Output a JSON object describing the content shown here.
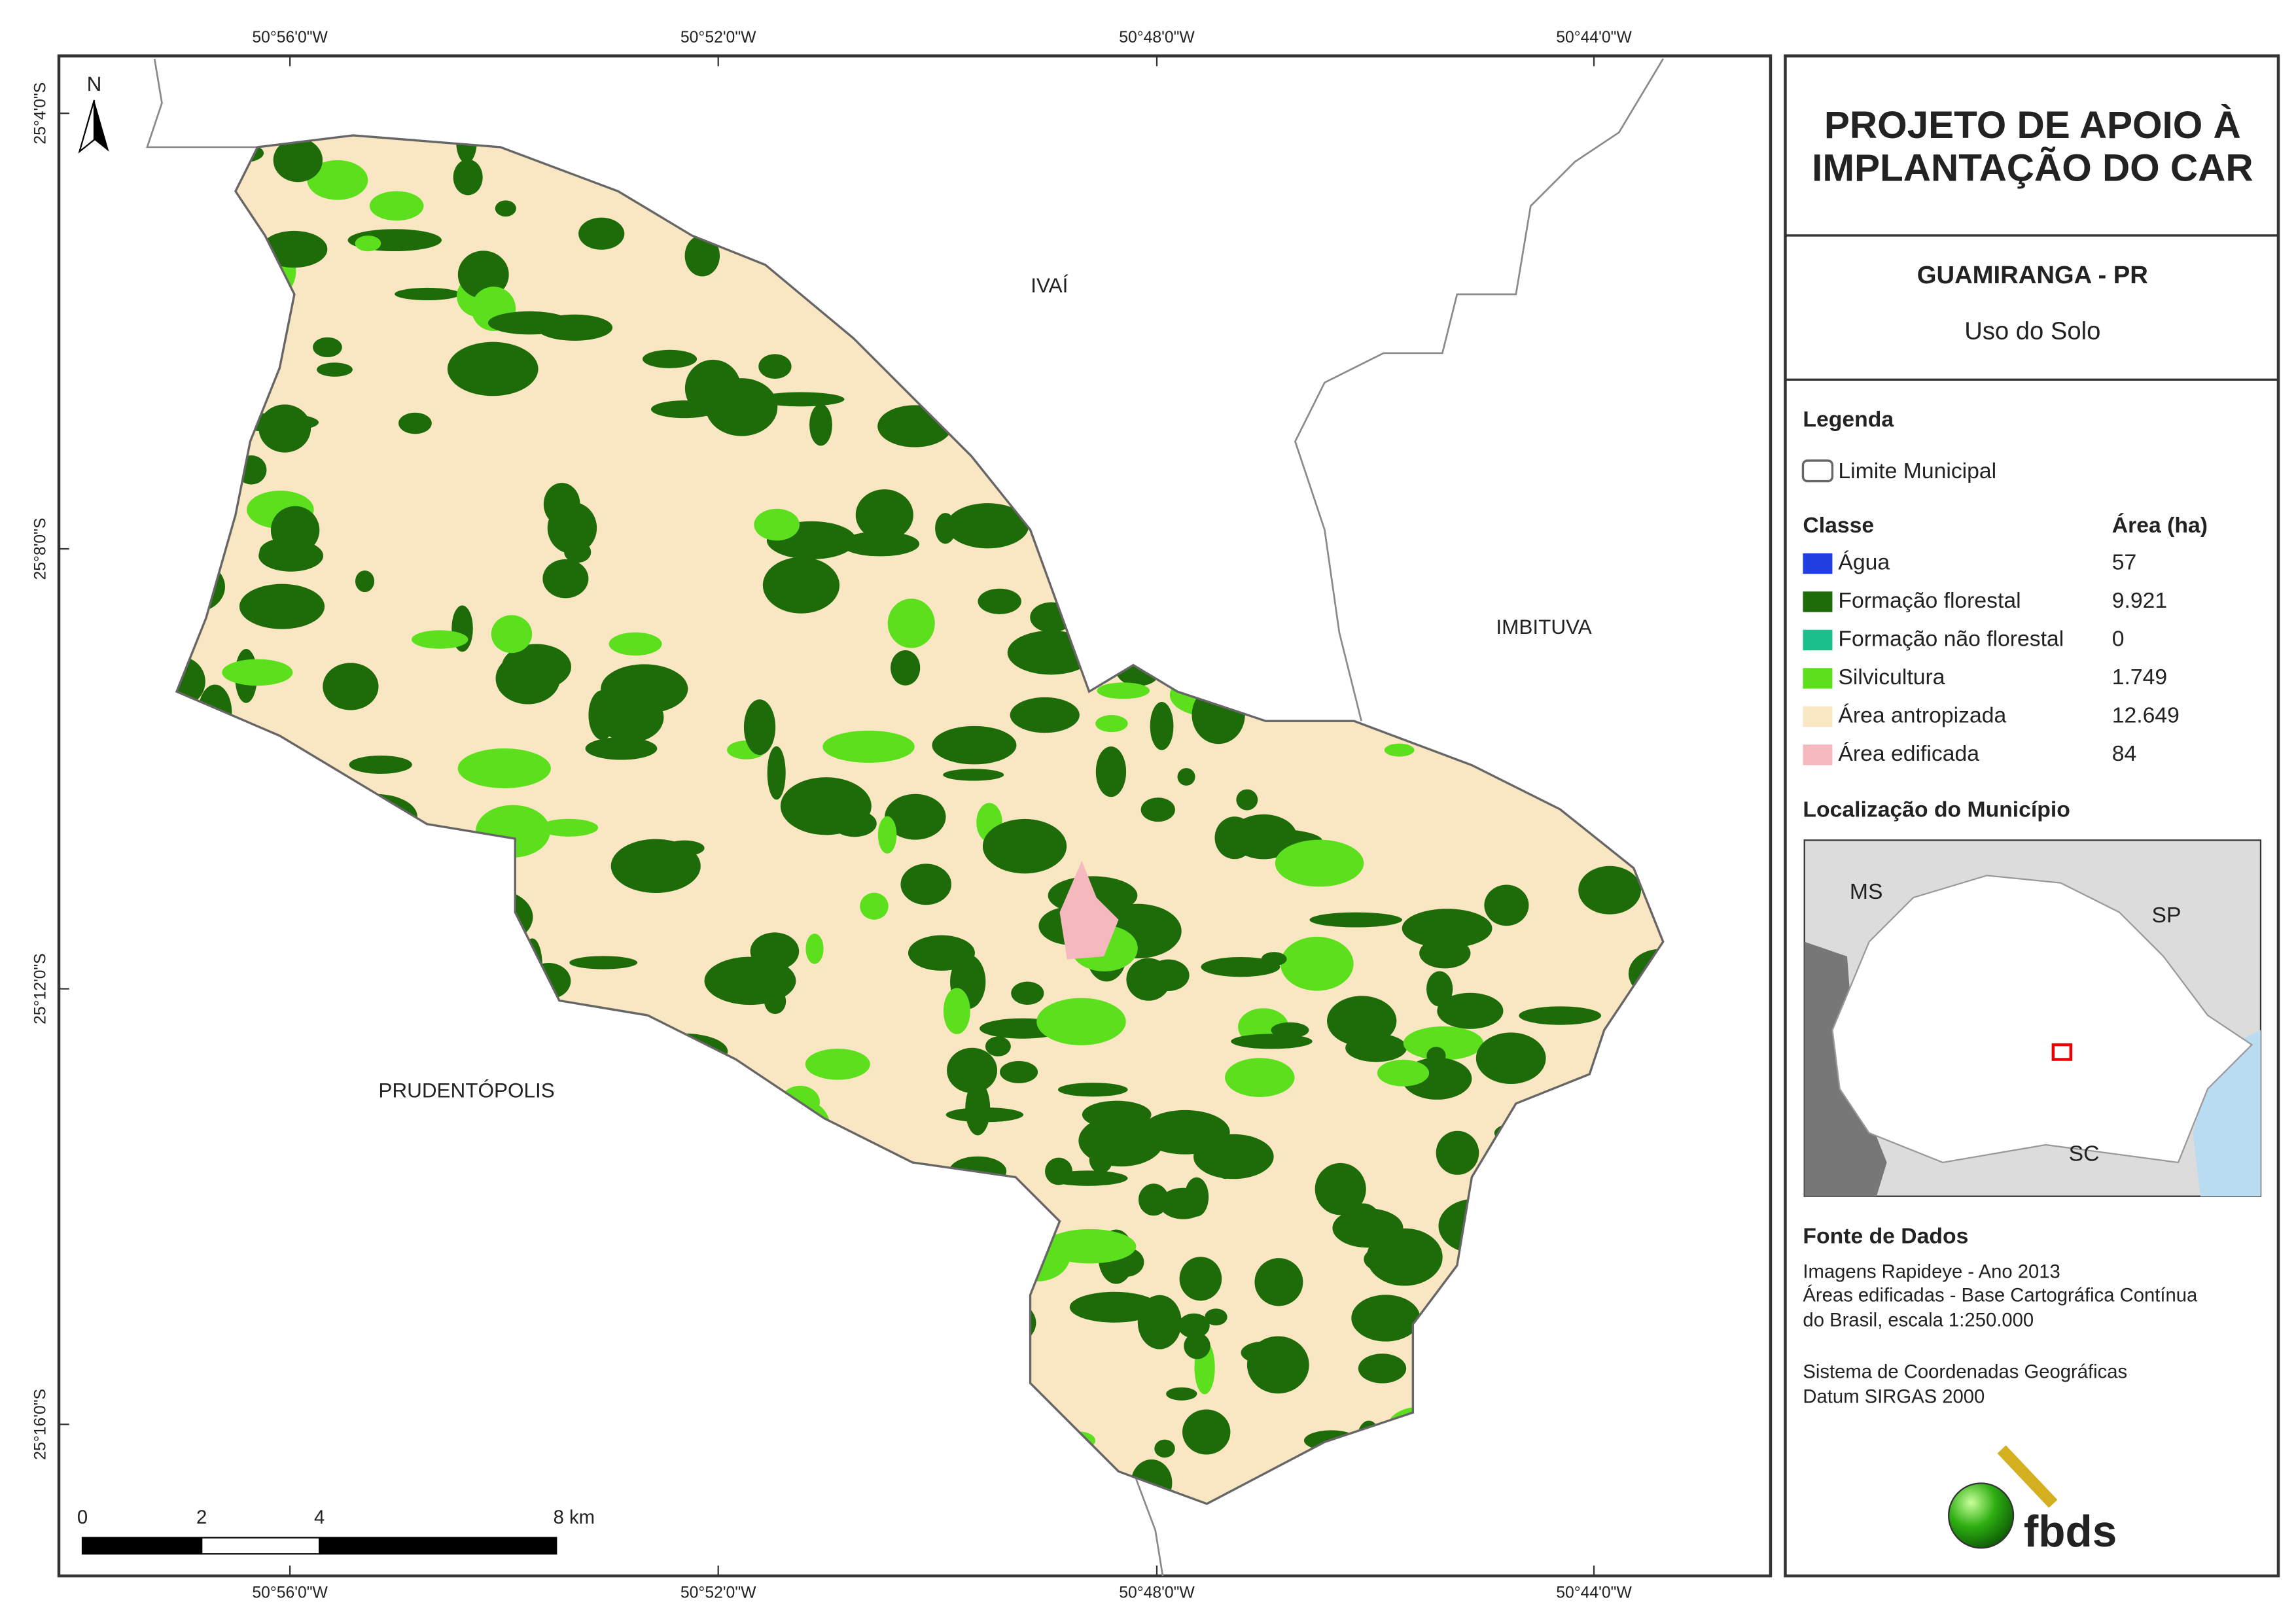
{
  "map": {
    "coordinates": {
      "top": [
        "50°56'0\"W",
        "50°52'0\"W",
        "50°48'0\"W",
        "50°44'0\"W"
      ],
      "bottom": [
        "50°56'0\"W",
        "50°52'0\"W",
        "50°48'0\"W",
        "50°44'0\"W"
      ],
      "left": [
        "25°4'0\"S",
        "25°8'0\"S",
        "25°12'0\"S",
        "25°16'0\"S"
      ]
    },
    "north": "N",
    "places": [
      "IVAÍ",
      "IMBITUVA",
      "PRUDENTÓPOLIS"
    ],
    "scale": [
      "0",
      "2",
      "4",
      "8 km"
    ]
  },
  "panel": {
    "title": [
      "PROJETO DE APOIO À",
      "IMPLANTAÇÃO DO CAR"
    ],
    "municipality": "GUAMIRANGA - PR",
    "subtitle": "Uso do Solo",
    "legend": {
      "heading": "Legenda",
      "boundary": "Limite Municipal",
      "class_header": "Classe",
      "area_header": "Área (ha)",
      "classes": [
        {
          "name": "Água",
          "area": "57",
          "color": "#1f3fe0"
        },
        {
          "name": "Formação florestal",
          "area": "9.921",
          "color": "#1e6b0a"
        },
        {
          "name": "Formação não florestal",
          "area": "0",
          "color": "#1abf8c"
        },
        {
          "name": "Silvicultura",
          "area": "1.749",
          "color": "#5ce01e"
        },
        {
          "name": "Área antropizada",
          "area": "12.649",
          "color": "#f9e6c2"
        },
        {
          "name": "Área edificada",
          "area": "84",
          "color": "#f5b8bf"
        }
      ]
    },
    "location": {
      "heading": "Localização do Município",
      "labels": [
        "MS",
        "SP",
        "SC"
      ]
    },
    "sources": {
      "heading": "Fonte de Dados",
      "lines": [
        "Imagens Rapideye - Ano 2013",
        "Áreas edificadas - Base Cartográfica Contínua",
        "do Brasil, escala 1:250.000",
        "Sistema de Coordenadas Geográficas",
        "Datum SIRGAS 2000"
      ]
    },
    "logo": "fbds"
  }
}
